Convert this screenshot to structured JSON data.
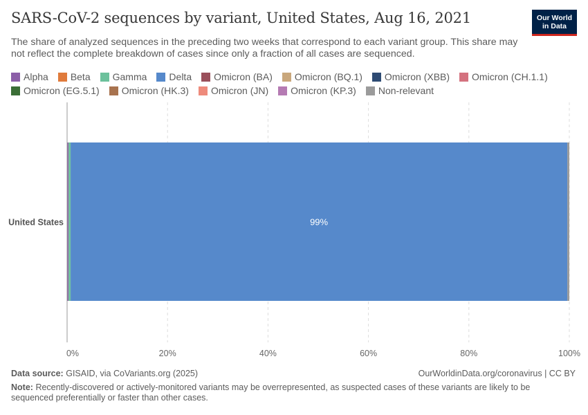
{
  "header": {
    "title": "SARS-CoV-2 sequences by variant, United States, Aug 16, 2021",
    "subtitle": "The share of analyzed sequences in the preceding two weeks that correspond to each variant group. This share may not reflect the complete breakdown of cases since only a fraction of all cases are sequenced.",
    "logo_line1": "Our World",
    "logo_line2": "in Data"
  },
  "legend": {
    "row1": [
      {
        "label": "Alpha",
        "color": "#8c5fa8"
      },
      {
        "label": "Beta",
        "color": "#e07b3c"
      },
      {
        "label": "Gamma",
        "color": "#6cc19c"
      },
      {
        "label": "Delta",
        "color": "#5689cb"
      },
      {
        "label": "Omicron (BA)",
        "color": "#9a4f5b"
      },
      {
        "label": "Omicron (BQ.1)",
        "color": "#c9a77c"
      },
      {
        "label": "Omicron (XBB)",
        "color": "#2e4b73"
      },
      {
        "label": "Omicron (CH.1.1)",
        "color": "#d4727f"
      }
    ],
    "row2": [
      {
        "label": "Omicron (EG.5.1)",
        "color": "#3b6e36"
      },
      {
        "label": "Omicron (HK.3)",
        "color": "#a8734f"
      },
      {
        "label": "Omicron (JN)",
        "color": "#ee8b7c"
      },
      {
        "label": "Omicron (KP.3)",
        "color": "#b57bb3"
      },
      {
        "label": "Non-relevant",
        "color": "#9b9b9b"
      }
    ]
  },
  "chart_data": {
    "type": "bar",
    "orientation": "horizontal",
    "stacked": true,
    "categories": [
      "United States"
    ],
    "series": [
      {
        "name": "Alpha",
        "values": [
          0.3
        ],
        "color": "#8c5fa8"
      },
      {
        "name": "Gamma",
        "values": [
          0.4
        ],
        "color": "#6cc19c"
      },
      {
        "name": "Delta",
        "values": [
          98.9
        ],
        "color": "#5689cb"
      },
      {
        "name": "Non-relevant",
        "values": [
          0.4
        ],
        "color": "#9b9b9b"
      }
    ],
    "data_labels": [
      {
        "series": "Delta",
        "text": "99%"
      }
    ],
    "xlim": [
      0,
      100
    ],
    "x_ticks": [
      "0%",
      "20%",
      "40%",
      "60%",
      "80%",
      "100%"
    ],
    "x_tick_values": [
      0,
      20,
      40,
      60,
      80,
      100
    ],
    "grid": true
  },
  "footer": {
    "source_label": "Data source:",
    "source_text": "GISAID, via CoVariants.org (2025)",
    "url": "OurWorldinData.org/coronavirus | CC BY",
    "note_label": "Note:",
    "note_text": "Recently-discovered or actively-monitored variants may be overrepresented, as suspected cases of these variants are likely to be sequenced preferentially or faster than other cases."
  }
}
